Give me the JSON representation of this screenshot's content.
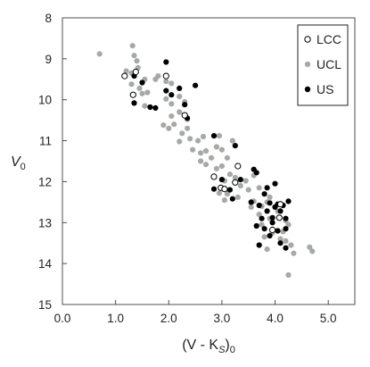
{
  "chart_data": {
    "type": "scatter",
    "xlabel": "(V - K_S)_0",
    "ylabel": "V_0",
    "xlim": [
      0.0,
      5.5
    ],
    "ylim": [
      8,
      15
    ],
    "y_inverted": true,
    "x_ticks": [
      "0.0",
      "1.0",
      "2.0",
      "3.0",
      "4.0",
      "5.0"
    ],
    "y_ticks": [
      "8",
      "9",
      "10",
      "11",
      "12",
      "13",
      "14",
      "15"
    ],
    "grid": false,
    "legend_position": "top-right",
    "series": [
      {
        "name": "LCC",
        "marker": "open-circle",
        "color": "#000000",
        "points": [
          [
            1.17,
            9.42
          ],
          [
            1.33,
            9.88
          ],
          [
            1.38,
            9.32
          ],
          [
            1.95,
            9.42
          ],
          [
            2.3,
            10.38
          ],
          [
            2.85,
            11.88
          ],
          [
            2.98,
            12.15
          ],
          [
            3.05,
            12.18
          ],
          [
            3.3,
            11.62
          ],
          [
            3.25,
            12.02
          ],
          [
            3.95,
            13.18
          ],
          [
            4.08,
            12.88
          ],
          [
            4.1,
            12.55
          ]
        ]
      },
      {
        "name": "UCL",
        "marker": "filled-circle",
        "color": "#a6aaa6",
        "points": [
          [
            0.7,
            8.88
          ],
          [
            1.32,
            8.68
          ],
          [
            1.35,
            8.92
          ],
          [
            1.4,
            9.05
          ],
          [
            1.2,
            9.3
          ],
          [
            1.3,
            9.35
          ],
          [
            1.42,
            9.22
          ],
          [
            1.55,
            9.5
          ],
          [
            1.3,
            9.62
          ],
          [
            1.45,
            9.72
          ],
          [
            1.5,
            9.85
          ],
          [
            1.6,
            9.82
          ],
          [
            1.35,
            10.08
          ],
          [
            1.55,
            10.15
          ],
          [
            1.75,
            9.5
          ],
          [
            1.8,
            9.42
          ],
          [
            1.95,
            9.55
          ],
          [
            2.05,
            9.6
          ],
          [
            1.95,
            9.98
          ],
          [
            2.05,
            10.1
          ],
          [
            2.2,
            9.92
          ],
          [
            2.3,
            10.05
          ],
          [
            2.05,
            10.4
          ],
          [
            2.2,
            10.3
          ],
          [
            2.35,
            10.48
          ],
          [
            1.9,
            10.62
          ],
          [
            2.0,
            10.7
          ],
          [
            2.1,
            10.6
          ],
          [
            2.25,
            10.82
          ],
          [
            2.35,
            10.7
          ],
          [
            2.2,
            11.02
          ],
          [
            2.4,
            10.95
          ],
          [
            2.55,
            11.0
          ],
          [
            2.65,
            10.9
          ],
          [
            2.45,
            11.22
          ],
          [
            2.6,
            11.3
          ],
          [
            2.7,
            11.25
          ],
          [
            2.6,
            11.5
          ],
          [
            2.7,
            11.58
          ],
          [
            2.8,
            11.42
          ],
          [
            2.9,
            11.15
          ],
          [
            3.0,
            11.22
          ],
          [
            3.1,
            11.42
          ],
          [
            2.9,
            11.68
          ],
          [
            3.0,
            11.62
          ],
          [
            3.15,
            11.82
          ],
          [
            3.05,
            11.98
          ],
          [
            3.25,
            11.9
          ],
          [
            3.35,
            12.1
          ],
          [
            3.45,
            11.98
          ],
          [
            3.5,
            12.2
          ],
          [
            2.95,
            12.28
          ],
          [
            3.1,
            12.3
          ],
          [
            3.3,
            12.38
          ],
          [
            3.05,
            12.45
          ],
          [
            2.95,
            10.88
          ],
          [
            3.2,
            11.0
          ],
          [
            3.6,
            11.85
          ],
          [
            3.7,
            12.15
          ],
          [
            3.6,
            12.48
          ],
          [
            3.75,
            12.6
          ],
          [
            3.85,
            12.5
          ],
          [
            3.7,
            12.8
          ],
          [
            3.9,
            12.9
          ],
          [
            3.75,
            13.05
          ],
          [
            3.95,
            13.25
          ],
          [
            3.8,
            13.35
          ],
          [
            4.1,
            13.4
          ],
          [
            4.2,
            13.45
          ],
          [
            4.3,
            13.55
          ],
          [
            4.15,
            13.22
          ],
          [
            4.25,
            13.05
          ],
          [
            3.9,
            12.38
          ],
          [
            4.05,
            12.72
          ],
          [
            4.2,
            12.95
          ],
          [
            3.85,
            13.65
          ],
          [
            4.35,
            13.75
          ],
          [
            4.65,
            13.6
          ],
          [
            4.7,
            13.7
          ],
          [
            4.25,
            14.28
          ],
          [
            3.55,
            12.62
          ]
        ]
      },
      {
        "name": "US",
        "marker": "filled-circle",
        "color": "#000000",
        "points": [
          [
            1.35,
            9.42
          ],
          [
            1.5,
            9.58
          ],
          [
            1.35,
            10.08
          ],
          [
            1.95,
            9.08
          ],
          [
            1.95,
            9.78
          ],
          [
            2.05,
            9.88
          ],
          [
            2.2,
            9.72
          ],
          [
            2.5,
            9.65
          ],
          [
            1.65,
            10.18
          ],
          [
            1.75,
            10.2
          ],
          [
            2.3,
            10.12
          ],
          [
            2.35,
            10.45
          ],
          [
            2.85,
            10.88
          ],
          [
            3.25,
            11.12
          ],
          [
            2.85,
            12.18
          ],
          [
            3.0,
            11.95
          ],
          [
            3.15,
            12.2
          ],
          [
            3.35,
            11.95
          ],
          [
            3.2,
            12.42
          ],
          [
            3.6,
            11.7
          ],
          [
            3.65,
            11.78
          ],
          [
            3.55,
            12.5
          ],
          [
            3.7,
            12.58
          ],
          [
            3.8,
            12.3
          ],
          [
            3.9,
            12.52
          ],
          [
            3.75,
            12.9
          ],
          [
            3.85,
            12.72
          ],
          [
            3.95,
            12.88
          ],
          [
            4.0,
            12.62
          ],
          [
            4.05,
            12.55
          ],
          [
            4.1,
            12.72
          ],
          [
            4.15,
            12.58
          ],
          [
            4.2,
            12.9
          ],
          [
            4.25,
            12.48
          ],
          [
            3.65,
            13.08
          ],
          [
            3.8,
            13.15
          ],
          [
            3.95,
            13.0
          ],
          [
            3.9,
            13.32
          ],
          [
            4.05,
            13.2
          ],
          [
            4.1,
            13.5
          ],
          [
            4.2,
            13.62
          ],
          [
            3.7,
            13.55
          ],
          [
            4.0,
            12.05
          ],
          [
            4.2,
            13.15
          ],
          [
            3.85,
            12.15
          ]
        ]
      }
    ]
  },
  "axes": {
    "x_title": {
      "main": "(V - K",
      "sub": "S",
      "close": ")",
      "sub2": "0"
    },
    "y_title": {
      "main": "V",
      "sub": "0"
    }
  },
  "legend": {
    "items": [
      {
        "label": "LCC"
      },
      {
        "label": "UCL"
      },
      {
        "label": "US"
      }
    ]
  }
}
